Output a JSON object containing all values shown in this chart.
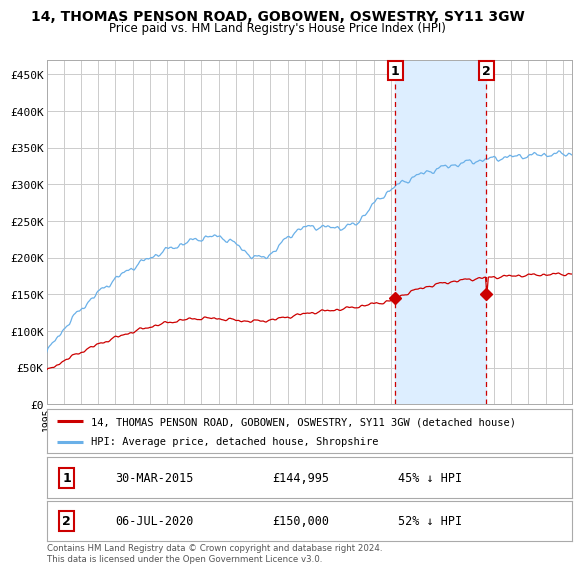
{
  "title": "14, THOMAS PENSON ROAD, GOBOWEN, OSWESTRY, SY11 3GW",
  "subtitle": "Price paid vs. HM Land Registry's House Price Index (HPI)",
  "ylabel_ticks": [
    "£0",
    "£50K",
    "£100K",
    "£150K",
    "£200K",
    "£250K",
    "£300K",
    "£350K",
    "£400K",
    "£450K"
  ],
  "ytick_values": [
    0,
    50000,
    100000,
    150000,
    200000,
    250000,
    300000,
    350000,
    400000,
    450000
  ],
  "ylim": [
    0,
    470000
  ],
  "xlim_start": 1995.0,
  "xlim_end": 2025.5,
  "hpi_color": "#6ab0e8",
  "hpi_shade_color": "#ddeeff",
  "price_color": "#cc0000",
  "marker1_x": 2015.25,
  "marker1_y": 144995,
  "marker1_label": "1",
  "marker2_x": 2020.55,
  "marker2_y": 150000,
  "marker2_label": "2",
  "legend_line1": "14, THOMAS PENSON ROAD, GOBOWEN, OSWESTRY, SY11 3GW (detached house)",
  "legend_line2": "HPI: Average price, detached house, Shropshire",
  "table_row1": [
    "1",
    "30-MAR-2015",
    "£144,995",
    "45% ↓ HPI"
  ],
  "table_row2": [
    "2",
    "06-JUL-2020",
    "£150,000",
    "52% ↓ HPI"
  ],
  "footer": "Contains HM Land Registry data © Crown copyright and database right 2024.\nThis data is licensed under the Open Government Licence v3.0.",
  "background_color": "#ffffff",
  "grid_color": "#cccccc"
}
